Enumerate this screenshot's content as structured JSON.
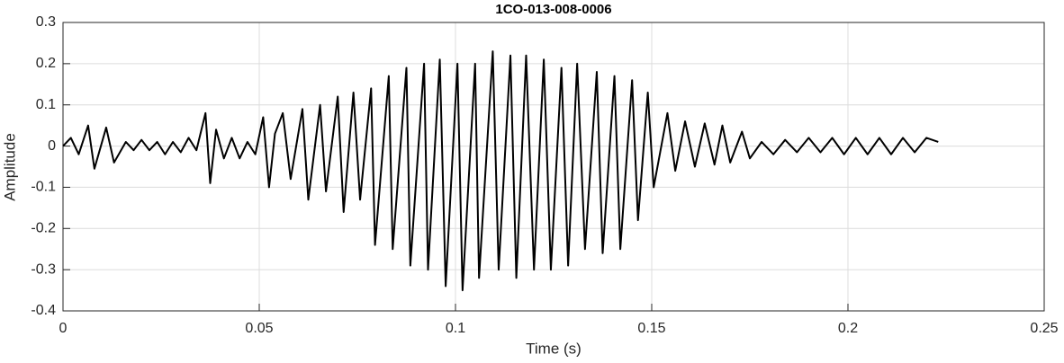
{
  "chart_data": {
    "type": "line",
    "title": "1CO-013-008-0006",
    "xlabel": "Time (s)",
    "ylabel": "Amplitude",
    "color": "#000000",
    "grid": true,
    "xlim": [
      0,
      0.25
    ],
    "xticks": [
      0,
      0.05,
      0.1,
      0.15,
      0.2,
      0.25
    ],
    "ylim": [
      -0.4,
      0.3
    ],
    "yticks": [
      -0.4,
      -0.3,
      -0.2,
      -0.1,
      0,
      0.1,
      0.2,
      0.3
    ],
    "x": [
      0,
      0.002,
      0.004,
      0.0064,
      0.008,
      0.011,
      0.013,
      0.016,
      0.018,
      0.02,
      0.022,
      0.024,
      0.026,
      0.028,
      0.03,
      0.032,
      0.034,
      0.0363,
      0.0375,
      0.039,
      0.041,
      0.043,
      0.045,
      0.047,
      0.049,
      0.051,
      0.0525,
      0.054,
      0.056,
      0.058,
      0.061,
      0.0625,
      0.0655,
      0.067,
      0.07,
      0.0715,
      0.074,
      0.0757,
      0.0785,
      0.0795,
      0.083,
      0.084,
      0.0875,
      0.0885,
      0.092,
      0.093,
      0.096,
      0.0975,
      0.1005,
      0.1018,
      0.105,
      0.106,
      0.1095,
      0.111,
      0.114,
      0.1155,
      0.118,
      0.12,
      0.1225,
      0.1243,
      0.127,
      0.1287,
      0.131,
      0.133,
      0.136,
      0.1375,
      0.1405,
      0.142,
      0.145,
      0.1465,
      0.149,
      0.1505,
      0.154,
      0.156,
      0.1585,
      0.161,
      0.1635,
      0.166,
      0.168,
      0.17,
      0.173,
      0.175,
      0.178,
      0.181,
      0.184,
      0.187,
      0.19,
      0.193,
      0.196,
      0.199,
      0.202,
      0.205,
      0.208,
      0.211,
      0.214,
      0.217,
      0.22,
      0.223
    ],
    "values": [
      0,
      0.02,
      -0.02,
      0.05,
      -0.055,
      0.045,
      -0.04,
      0.01,
      -0.01,
      0.015,
      -0.01,
      0.01,
      -0.02,
      0.01,
      -0.015,
      0.02,
      -0.01,
      0.08,
      -0.09,
      0.04,
      -0.03,
      0.02,
      -0.03,
      0.01,
      -0.02,
      0.07,
      -0.1,
      0.03,
      0.08,
      -0.08,
      0.09,
      -0.13,
      0.1,
      -0.11,
      0.12,
      -0.16,
      0.13,
      -0.13,
      0.14,
      -0.24,
      0.17,
      -0.25,
      0.19,
      -0.29,
      0.2,
      -0.3,
      0.21,
      -0.34,
      0.2,
      -0.35,
      0.2,
      -0.32,
      0.23,
      -0.3,
      0.22,
      -0.32,
      0.22,
      -0.3,
      0.21,
      -0.3,
      0.19,
      -0.29,
      0.2,
      -0.25,
      0.18,
      -0.26,
      0.17,
      -0.25,
      0.16,
      -0.18,
      0.13,
      -0.1,
      0.08,
      -0.06,
      0.06,
      -0.05,
      0.055,
      -0.045,
      0.05,
      -0.04,
      0.035,
      -0.03,
      0.01,
      -0.02,
      0.015,
      -0.015,
      0.02,
      -0.015,
      0.02,
      -0.02,
      0.02,
      -0.02,
      0.02,
      -0.02,
      0.02,
      -0.015,
      0.02,
      0.01
    ]
  }
}
